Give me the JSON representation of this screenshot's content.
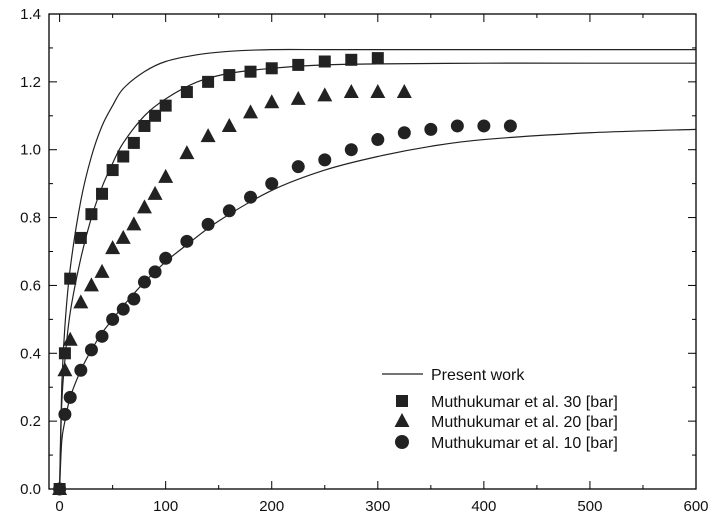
{
  "chart_data": {
    "type": "scatter",
    "title": "",
    "xlabel": "",
    "ylabel": "",
    "xlim": [
      -10,
      600
    ],
    "ylim": [
      0,
      1.4
    ],
    "x_ticks": [
      "0",
      "100",
      "200",
      "300",
      "400",
      "500",
      "600"
    ],
    "y_ticks": [
      "0.0",
      "0.2",
      "0.4",
      "0.6",
      "0.8",
      "1.0",
      "1.2",
      "1.4"
    ],
    "grid": false,
    "legend_position": "bottom-right",
    "legend": [
      "Present work",
      "Muthukumar et al. 30 [bar]",
      "Muthukumar et al. 20 [bar]",
      "Muthukumar et al. 10 [bar]"
    ],
    "lines": [
      {
        "name": "Present work",
        "x": [
          0,
          2,
          5,
          10,
          20,
          30,
          40,
          50,
          60,
          80,
          100,
          130,
          160,
          200,
          250,
          300,
          400,
          500,
          600
        ],
        "y": [
          0,
          0.3,
          0.48,
          0.65,
          0.85,
          0.98,
          1.07,
          1.13,
          1.18,
          1.23,
          1.26,
          1.28,
          1.29,
          1.295,
          1.295,
          1.295,
          1.295,
          1.295,
          1.295
        ]
      },
      {
        "name": "",
        "x": [
          0,
          2,
          5,
          10,
          20,
          30,
          40,
          50,
          60,
          80,
          100,
          130,
          160,
          200,
          250,
          300,
          400,
          500,
          600
        ],
        "y": [
          0,
          0.25,
          0.38,
          0.52,
          0.68,
          0.8,
          0.89,
          0.96,
          1.02,
          1.1,
          1.15,
          1.2,
          1.225,
          1.24,
          1.25,
          1.253,
          1.255,
          1.255,
          1.255
        ]
      },
      {
        "name": "",
        "x": [
          0,
          2,
          5,
          10,
          20,
          30,
          40,
          50,
          60,
          80,
          100,
          120,
          150,
          200,
          250,
          300,
          350,
          400,
          500,
          600
        ],
        "y": [
          0,
          0.14,
          0.2,
          0.27,
          0.35,
          0.41,
          0.46,
          0.5,
          0.54,
          0.61,
          0.67,
          0.72,
          0.79,
          0.88,
          0.94,
          0.98,
          1.01,
          1.03,
          1.05,
          1.06
        ]
      }
    ],
    "series": [
      {
        "name": "Muthukumar et al. 30 [bar]",
        "marker": "square",
        "x": [
          0,
          5,
          10,
          20,
          30,
          40,
          50,
          60,
          70,
          80,
          90,
          100,
          120,
          140,
          160,
          180,
          200,
          225,
          250,
          275,
          300
        ],
        "y": [
          0.0,
          0.4,
          0.62,
          0.74,
          0.81,
          0.87,
          0.94,
          0.98,
          1.02,
          1.07,
          1.1,
          1.13,
          1.17,
          1.2,
          1.22,
          1.23,
          1.24,
          1.25,
          1.26,
          1.265,
          1.27
        ]
      },
      {
        "name": "Muthukumar et al. 20 [bar]",
        "marker": "triangle",
        "x": [
          0,
          5,
          10,
          20,
          30,
          40,
          50,
          60,
          70,
          80,
          90,
          100,
          120,
          140,
          160,
          180,
          200,
          225,
          250,
          275,
          300,
          325
        ],
        "y": [
          0.0,
          0.35,
          0.44,
          0.55,
          0.6,
          0.64,
          0.71,
          0.74,
          0.78,
          0.83,
          0.87,
          0.92,
          0.99,
          1.04,
          1.07,
          1.11,
          1.14,
          1.15,
          1.16,
          1.17,
          1.17,
          1.17
        ]
      },
      {
        "name": "Muthukumar et al. 10 [bar]",
        "marker": "circle",
        "x": [
          0,
          5,
          10,
          20,
          30,
          40,
          50,
          60,
          70,
          80,
          90,
          100,
          120,
          140,
          160,
          180,
          200,
          225,
          250,
          275,
          300,
          325,
          350,
          375,
          400,
          425
        ],
        "y": [
          0.0,
          0.22,
          0.27,
          0.35,
          0.41,
          0.45,
          0.5,
          0.53,
          0.56,
          0.61,
          0.64,
          0.68,
          0.73,
          0.78,
          0.82,
          0.86,
          0.9,
          0.95,
          0.97,
          1.0,
          1.03,
          1.05,
          1.06,
          1.07,
          1.07,
          1.07
        ]
      }
    ]
  }
}
